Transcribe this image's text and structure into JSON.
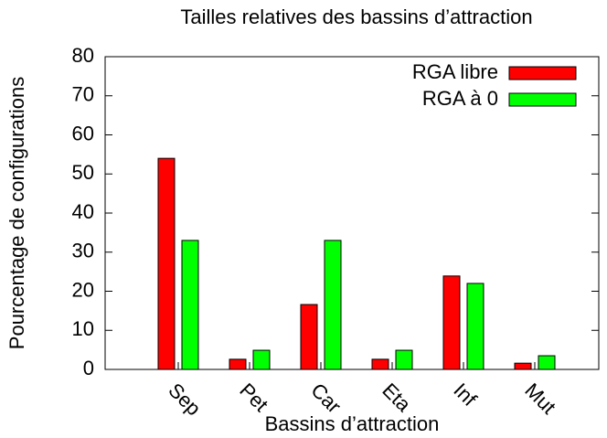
{
  "chart_data": {
    "type": "bar",
    "title": "Tailles relatives des bassins d’attraction",
    "x_label": "Bassins d’attraction",
    "y_label": "Pourcentage de configurations",
    "categories": [
      "Sep",
      "Pet",
      "Car",
      "Eta",
      "Inf",
      "Mut"
    ],
    "series": [
      {
        "name": "RGA libre",
        "color": "#ff0000",
        "values": [
          54.0,
          2.6,
          16.6,
          2.6,
          23.9,
          1.6
        ]
      },
      {
        "name": "RGA à 0",
        "color": "#00ff00",
        "values": [
          33.0,
          4.9,
          33.0,
          4.9,
          22.0,
          3.5
        ]
      }
    ],
    "ylim": [
      0,
      80
    ],
    "yticks": [
      0,
      10,
      20,
      30,
      40,
      50,
      60,
      70,
      80
    ],
    "legend": "upper right"
  }
}
